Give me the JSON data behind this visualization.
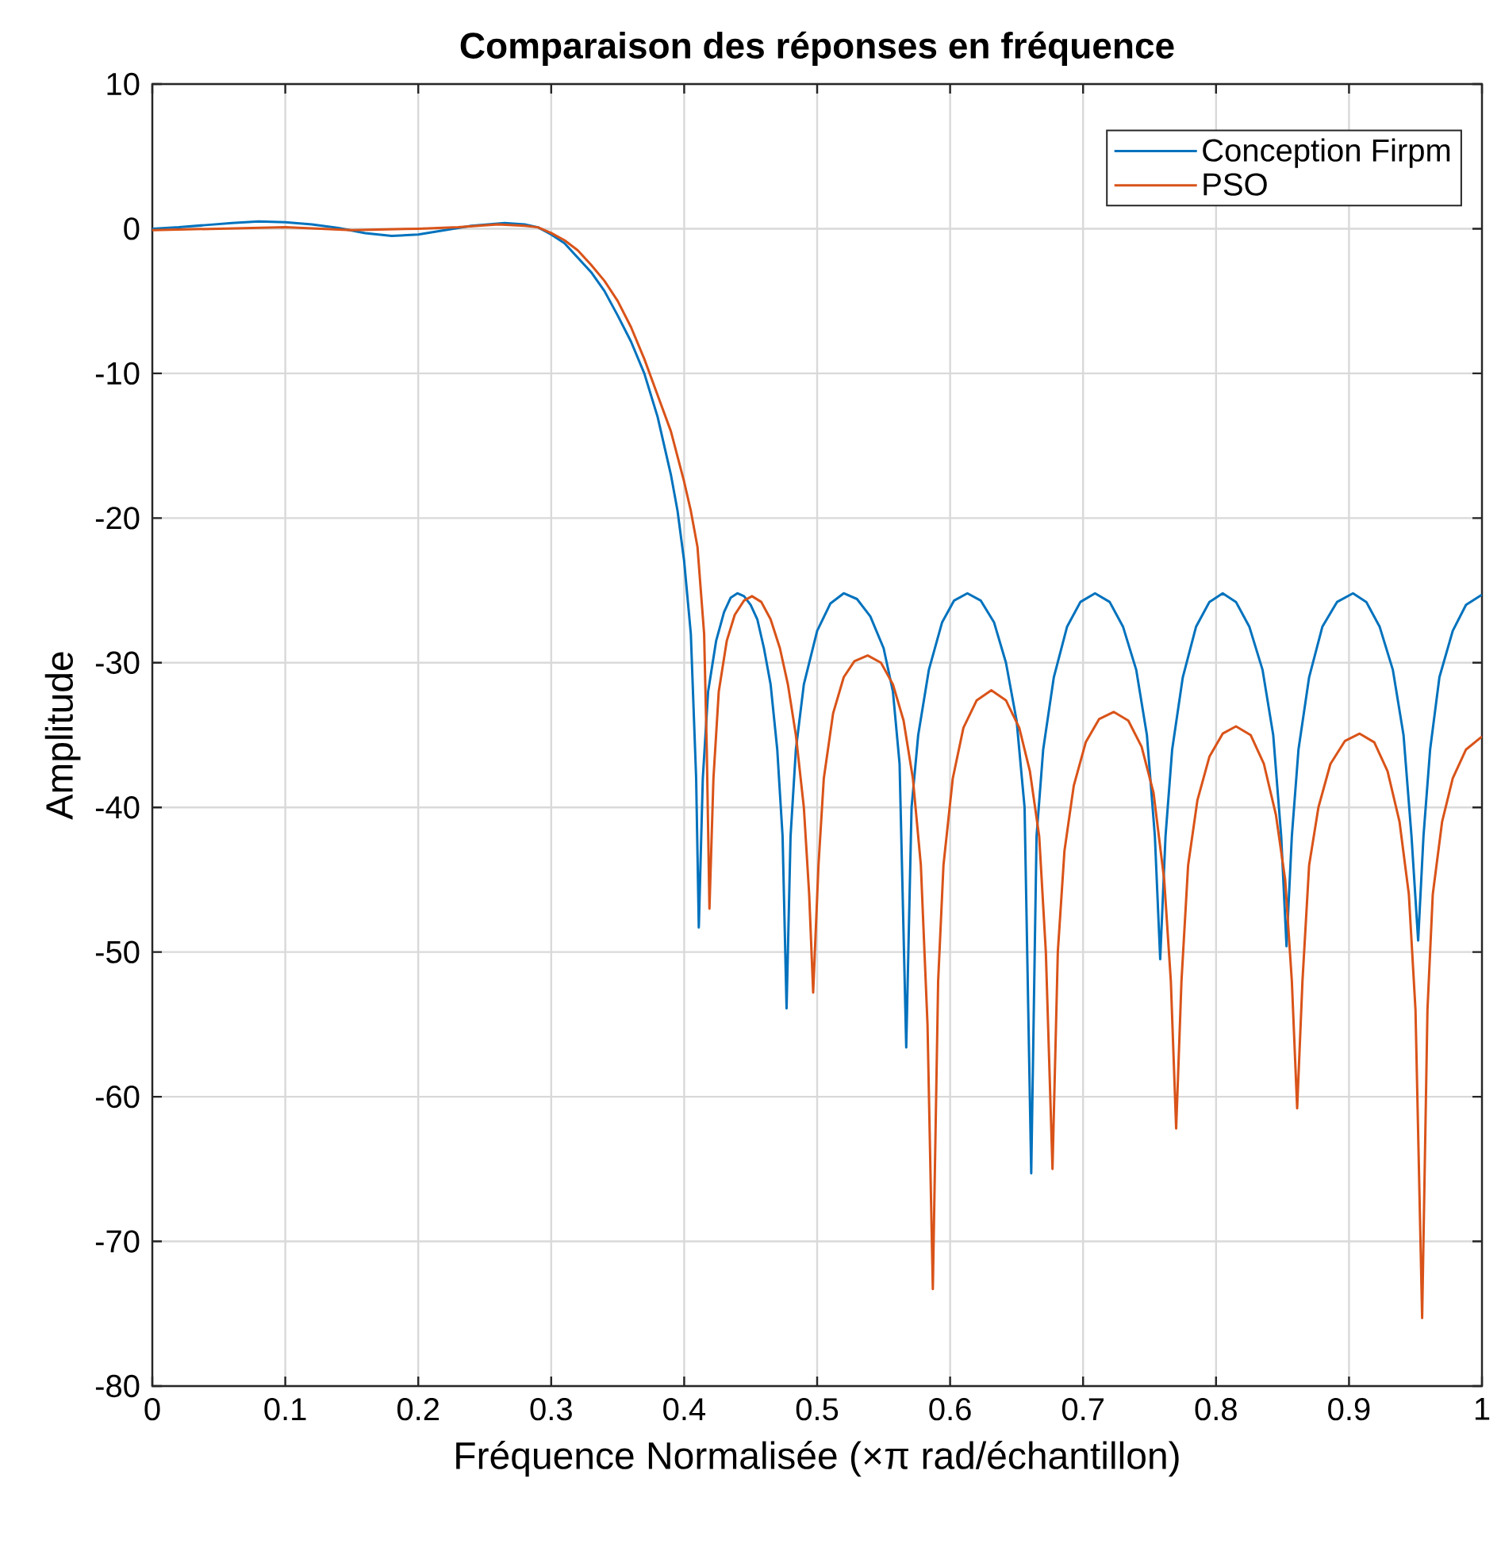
{
  "chart_data": {
    "type": "line",
    "title": "Comparaison des réponses en fréquence",
    "xlabel": "Fréquence Normalisée (×π rad/échantillon)",
    "ylabel": "Amplitude",
    "xlim": [
      0,
      1
    ],
    "ylim": [
      -80,
      10
    ],
    "xticks": [
      0,
      0.1,
      0.2,
      0.3,
      0.4,
      0.5,
      0.6,
      0.7,
      0.8,
      0.9,
      1
    ],
    "yticks": [
      -80,
      -70,
      -60,
      -50,
      -40,
      -30,
      -20,
      -10,
      0,
      10
    ],
    "grid": true,
    "legend": "top right",
    "line_style": "solid",
    "series": [
      {
        "name": "Conception Firpm",
        "color": "#0072bd",
        "x": [
          0,
          0.02,
          0.04,
          0.06,
          0.08,
          0.1,
          0.12,
          0.14,
          0.16,
          0.18,
          0.2,
          0.22,
          0.24,
          0.265,
          0.28,
          0.29,
          0.3,
          0.31,
          0.32,
          0.33,
          0.34,
          0.35,
          0.36,
          0.37,
          0.38,
          0.39,
          0.395,
          0.4,
          0.405,
          0.409,
          0.411,
          0.414,
          0.418,
          0.424,
          0.43,
          0.435,
          0.44,
          0.445,
          0.45,
          0.455,
          0.46,
          0.465,
          0.47,
          0.474,
          0.477,
          0.48,
          0.484,
          0.49,
          0.5,
          0.51,
          0.52,
          0.53,
          0.54,
          0.55,
          0.557,
          0.562,
          0.567,
          0.571,
          0.576,
          0.584,
          0.594,
          0.603,
          0.613,
          0.623,
          0.633,
          0.642,
          0.65,
          0.656,
          0.661,
          0.665,
          0.67,
          0.678,
          0.688,
          0.698,
          0.709,
          0.72,
          0.73,
          0.74,
          0.748,
          0.754,
          0.758,
          0.762,
          0.767,
          0.775,
          0.785,
          0.795,
          0.805,
          0.815,
          0.825,
          0.835,
          0.843,
          0.849,
          0.853,
          0.857,
          0.862,
          0.87,
          0.88,
          0.891,
          0.903,
          0.913,
          0.923,
          0.933,
          0.941,
          0.947,
          0.952,
          0.956,
          0.961,
          0.968,
          0.978,
          0.988,
          1
        ],
        "values": [
          0,
          0.1,
          0.25,
          0.4,
          0.5,
          0.45,
          0.3,
          0.05,
          -0.3,
          -0.5,
          -0.4,
          -0.1,
          0.2,
          0.4,
          0.3,
          0.1,
          -0.4,
          -1,
          -2,
          -3,
          -4.3,
          -6,
          -7.8,
          -10,
          -13,
          -17,
          -19.5,
          -23,
          -28,
          -38,
          -48.3,
          -38,
          -32,
          -28.5,
          -26.5,
          -25.5,
          -25.2,
          -25.4,
          -26,
          -27,
          -29,
          -31.5,
          -36,
          -42,
          -53.9,
          -42,
          -36,
          -31.5,
          -27.8,
          -25.9,
          -25.2,
          -25.6,
          -26.8,
          -29,
          -32,
          -37,
          -56.6,
          -40,
          -35,
          -30.5,
          -27.2,
          -25.7,
          -25.2,
          -25.7,
          -27.2,
          -30,
          -34,
          -40,
          -65.3,
          -42,
          -36,
          -31,
          -27.5,
          -25.8,
          -25.2,
          -25.8,
          -27.5,
          -30.5,
          -35,
          -42,
          -50.5,
          -42,
          -36,
          -31,
          -27.5,
          -25.8,
          -25.2,
          -25.8,
          -27.5,
          -30.5,
          -35,
          -42,
          -49.6,
          -42,
          -36,
          -31,
          -27.5,
          -25.8,
          -25.2,
          -25.8,
          -27.5,
          -30.5,
          -35,
          -42,
          -49.2,
          -42,
          -36,
          -31,
          -27.8,
          -26,
          -25.3
        ]
      },
      {
        "name": "PSO",
        "color": "#d95319",
        "x": [
          0,
          0.05,
          0.1,
          0.15,
          0.2,
          0.23,
          0.26,
          0.28,
          0.29,
          0.3,
          0.31,
          0.32,
          0.33,
          0.34,
          0.35,
          0.36,
          0.37,
          0.38,
          0.39,
          0.4,
          0.405,
          0.41,
          0.415,
          0.417,
          0.419,
          0.422,
          0.426,
          0.432,
          0.438,
          0.445,
          0.451,
          0.458,
          0.465,
          0.472,
          0.478,
          0.484,
          0.49,
          0.494,
          0.497,
          0.501,
          0.505,
          0.512,
          0.52,
          0.528,
          0.538,
          0.548,
          0.557,
          0.565,
          0.572,
          0.578,
          0.583,
          0.587,
          0.591,
          0.595,
          0.602,
          0.61,
          0.62,
          0.631,
          0.642,
          0.652,
          0.66,
          0.667,
          0.672,
          0.677,
          0.681,
          0.686,
          0.693,
          0.702,
          0.712,
          0.723,
          0.734,
          0.744,
          0.753,
          0.761,
          0.766,
          0.77,
          0.774,
          0.779,
          0.786,
          0.795,
          0.805,
          0.815,
          0.826,
          0.836,
          0.845,
          0.852,
          0.857,
          0.861,
          0.865,
          0.87,
          0.877,
          0.886,
          0.897,
          0.908,
          0.919,
          0.929,
          0.938,
          0.945,
          0.95,
          0.955,
          0.959,
          0.963,
          0.97,
          0.978,
          0.988,
          1
        ],
        "values": [
          -0.1,
          0,
          0.1,
          -0.1,
          0,
          0.1,
          0.3,
          0.2,
          0.1,
          -0.3,
          -0.8,
          -1.5,
          -2.5,
          -3.6,
          -5,
          -6.8,
          -9,
          -11.5,
          -14,
          -17.5,
          -19.5,
          -22,
          -28,
          -36,
          -47,
          -38,
          -32,
          -28.5,
          -26.7,
          -25.7,
          -25.4,
          -25.8,
          -27,
          -29,
          -31.5,
          -35,
          -40,
          -46,
          -52.8,
          -44,
          -38,
          -33.5,
          -31,
          -29.9,
          -29.5,
          -30,
          -31.5,
          -34,
          -38,
          -44,
          -55,
          -73.3,
          -52,
          -44,
          -38,
          -34.5,
          -32.6,
          -31.9,
          -32.6,
          -34.5,
          -37.5,
          -42,
          -50,
          -65,
          -50,
          -43,
          -38.5,
          -35.5,
          -33.9,
          -33.4,
          -34,
          -35.8,
          -39,
          -45,
          -52,
          -62.2,
          -52,
          -44,
          -39.5,
          -36.5,
          -34.9,
          -34.4,
          -35,
          -37,
          -40.5,
          -45,
          -52,
          -60.8,
          -52,
          -44,
          -40,
          -37,
          -35.4,
          -34.9,
          -35.5,
          -37.5,
          -41,
          -46,
          -54,
          -75.3,
          -54,
          -46,
          -41,
          -38,
          -36,
          -35.1
        ]
      }
    ]
  }
}
